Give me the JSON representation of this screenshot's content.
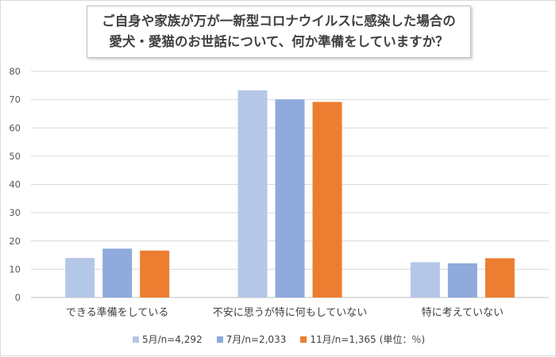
{
  "title": {
    "line1": "ご自身や家族が万が一新型コロナウイルスに感染した場合の",
    "line2": "愛犬・愛猫のお世話について、何か準備をしていますか？"
  },
  "legend_suffix": "(単位：％)",
  "chart_data": {
    "type": "bar",
    "title": "ご自身や家族が万が一新型コロナウイルスに感染した場合の愛犬・愛猫のお世話について、何か準備をしていますか？",
    "categories": [
      "できる準備をしている",
      "不安に思うが特に何もしていない",
      "特に考えていない"
    ],
    "series": [
      {
        "name": "5月/n=4,292",
        "values": [
          14.0,
          73.3,
          12.5
        ],
        "color": "#b4c7e7"
      },
      {
        "name": "7月/n=2,033",
        "values": [
          17.3,
          70.1,
          12.1
        ],
        "color": "#8faadc"
      },
      {
        "name": "11月/n=1,365",
        "values": [
          16.6,
          69.2,
          13.9
        ],
        "color": "#ed7d31"
      }
    ],
    "yticks": [
      0,
      10,
      20,
      30,
      40,
      50,
      60,
      70,
      80
    ],
    "ylim": [
      0,
      80
    ],
    "grid": true,
    "legend_position": "bottom",
    "unit": "％"
  }
}
